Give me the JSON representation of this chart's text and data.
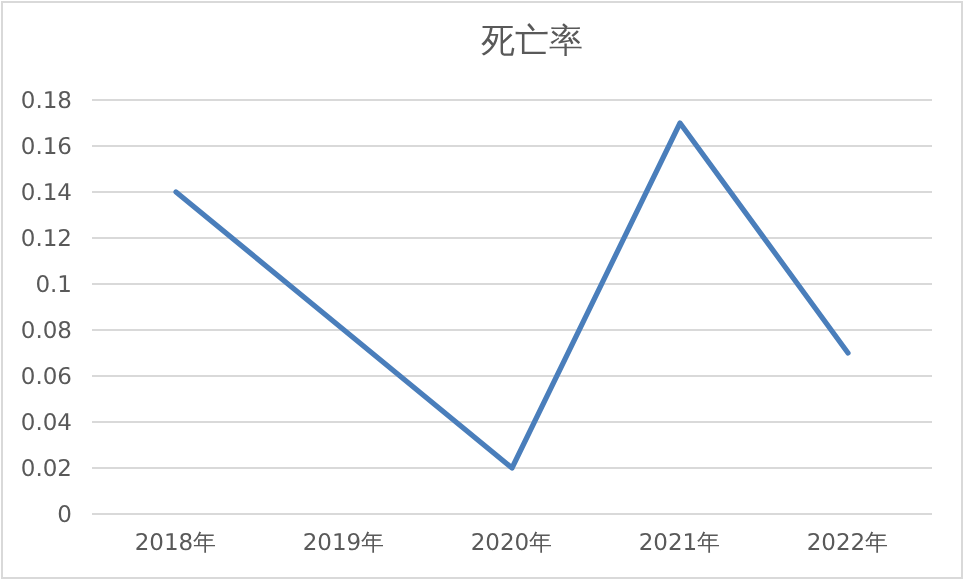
{
  "chart_data": {
    "type": "line",
    "title": "死亡率",
    "categories": [
      "2018年",
      "2019年",
      "2020年",
      "2021年",
      "2022年"
    ],
    "series": [
      {
        "color": "#4a7ebb",
        "values": [
          0.14,
          0.08,
          0.02,
          0.17,
          0.07
        ]
      }
    ],
    "ylim": [
      0,
      0.18
    ],
    "yticks": [
      0,
      0.02,
      0.04,
      0.06,
      0.08,
      0.1,
      0.12,
      0.14,
      0.16,
      0.18
    ],
    "grid": "y",
    "marker": "none",
    "line_style": "solid"
  }
}
